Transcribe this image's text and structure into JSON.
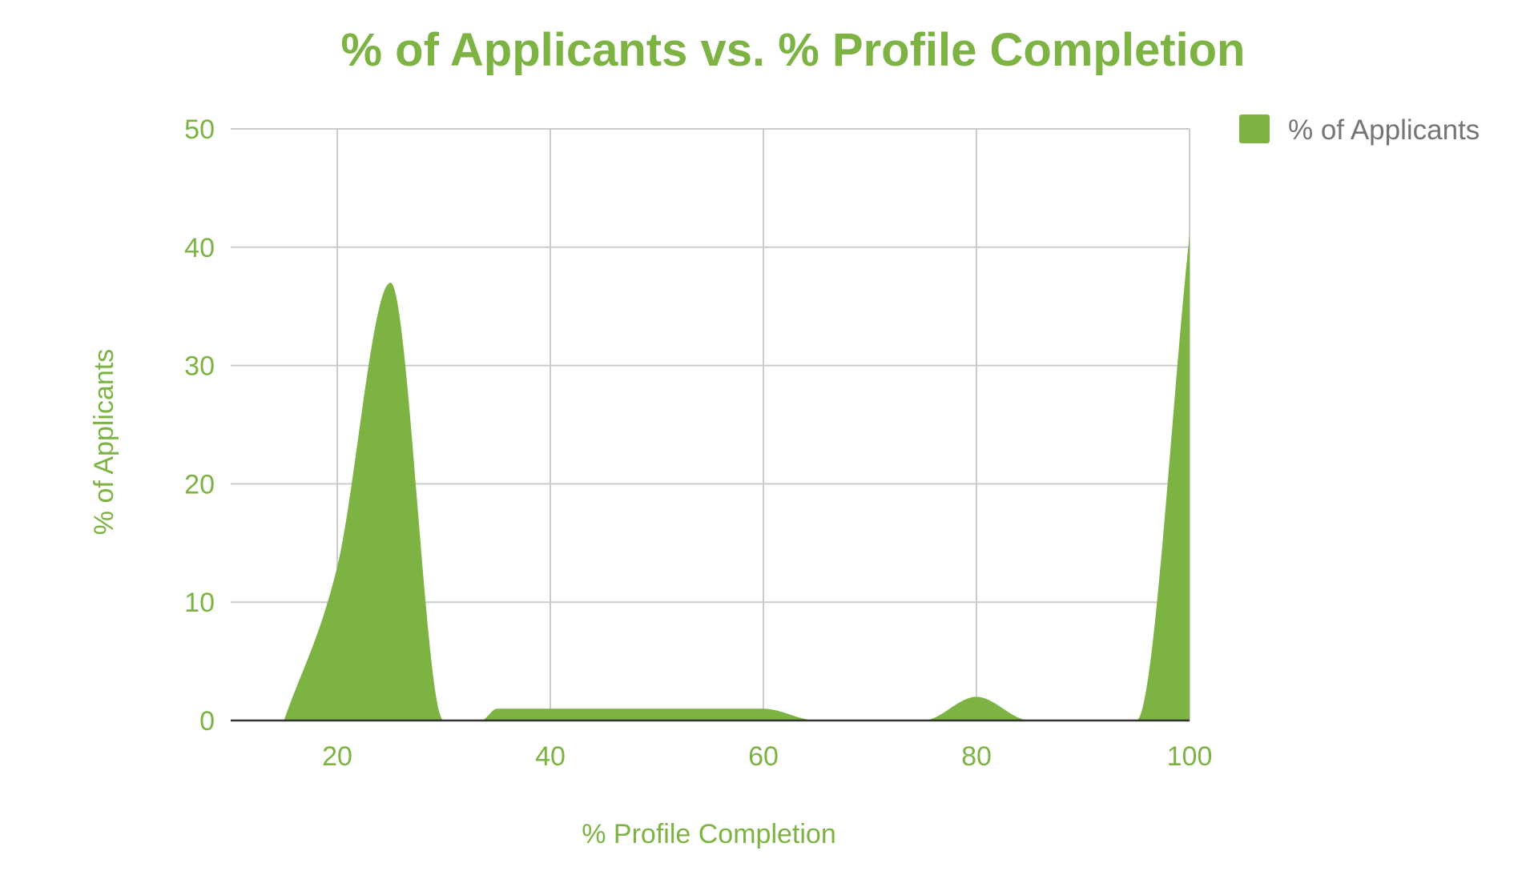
{
  "colors": {
    "accent": "#7cb342",
    "series": "#7cb342",
    "grid": "#cccccc",
    "baseline": "#333333",
    "legend_text": "#757575"
  },
  "chart_data": {
    "type": "area",
    "title": "% of Applicants vs. % Profile Completion",
    "xlabel": "% Profile Completion",
    "ylabel": "% of Applicants",
    "xlim": [
      10,
      100
    ],
    "ylim": [
      0,
      50
    ],
    "x_ticks": [
      20,
      40,
      60,
      80,
      100
    ],
    "y_ticks": [
      0,
      10,
      20,
      30,
      40,
      50
    ],
    "grid": true,
    "legend_position": "right",
    "series": [
      {
        "name": "% of Applicants",
        "color": "#7cb342",
        "points": [
          [
            15,
            0
          ],
          [
            20,
            13
          ],
          [
            25,
            37
          ],
          [
            30,
            0
          ],
          [
            33.5,
            0
          ],
          [
            35,
            1
          ],
          [
            55,
            1
          ],
          [
            60,
            1
          ],
          [
            65,
            0
          ],
          [
            70,
            0
          ],
          [
            75,
            0
          ],
          [
            80,
            2
          ],
          [
            85,
            0
          ],
          [
            90,
            0
          ],
          [
            95,
            0
          ],
          [
            100,
            41
          ]
        ]
      }
    ]
  }
}
